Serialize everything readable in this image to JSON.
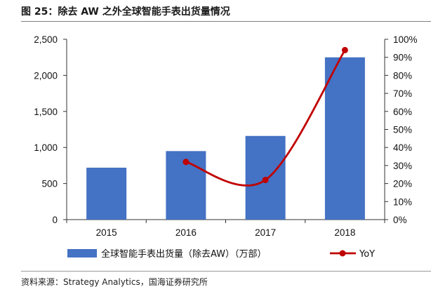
{
  "figure": {
    "title": "图 25：除去 AW 之外全球智能手表出货量情况",
    "source": "资料来源：Strategy Analytics，国海证券研究所"
  },
  "colors": {
    "bar": "#4472C4",
    "line": "#C00000",
    "axis": "#333333"
  },
  "chart_data": {
    "type": "bar+line",
    "categories": [
      "2015",
      "2016",
      "2017",
      "2018"
    ],
    "series": [
      {
        "name": "全球智能手表出货量（除去AW）（万部）",
        "type": "bar",
        "axis": "left",
        "values": [
          720,
          950,
          1160,
          2250
        ]
      },
      {
        "name": "YoY",
        "type": "line",
        "axis": "right",
        "smooth": true,
        "values": [
          null,
          32,
          22,
          94
        ]
      }
    ],
    "y_left": {
      "min": 0,
      "max": 2500,
      "step": 500,
      "ticks": [
        "0",
        "500",
        "1,000",
        "1,500",
        "2,000",
        "2,500"
      ]
    },
    "y_right": {
      "min": 0,
      "max": 100,
      "step": 10,
      "ticks": [
        "0%",
        "10%",
        "20%",
        "30%",
        "40%",
        "50%",
        "60%",
        "70%",
        "80%",
        "90%",
        "100%"
      ]
    },
    "grid": false,
    "legend_position": "bottom"
  }
}
